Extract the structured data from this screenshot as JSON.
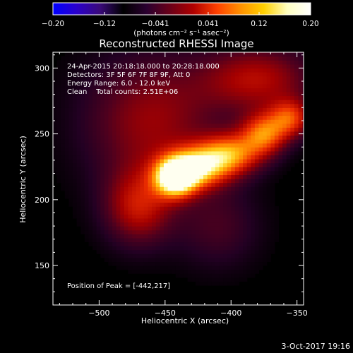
{
  "chart_data": {
    "type": "heatmap",
    "title": "Reconstructed RHESSI Image",
    "xlabel": "Heliocentric X (arcsec)",
    "ylabel": "Heliocentric Y (arcsec)",
    "xlim": [
      -535,
      -345
    ],
    "ylim": [
      120,
      312
    ],
    "x_ticks": [
      -500,
      -450,
      -400,
      -350
    ],
    "y_ticks": [
      150,
      200,
      250,
      300
    ],
    "x_tick_labels": [
      "−500",
      "−450",
      "−400",
      "−350"
    ],
    "y_tick_labels": [
      "150",
      "200",
      "250",
      "300"
    ],
    "colorbar": {
      "range": [
        -0.2,
        0.2
      ],
      "ticks": [
        -0.2,
        -0.12,
        -0.041,
        0.041,
        0.12,
        0.2
      ],
      "tick_labels": [
        "−0.20",
        "−0.12",
        "−0.041",
        "0.041",
        "0.12",
        "0.20"
      ],
      "units_label": "(photons cm⁻² s⁻¹ asec⁻²)",
      "colormap": [
        "#0000ff",
        "#2a00cc",
        "#3a0a7a",
        "#000000",
        "#2a0030",
        "#6a0018",
        "#b00000",
        "#ff4000",
        "#ff9000",
        "#ffd000",
        "#ffffc0",
        "#ffffff"
      ]
    },
    "annotations": [
      "24-Apr-2015 20:18:18.000 to 20:28:18.000",
      "Detectors: 3F 5F 6F 7F 8F 9F, Att 0",
      "Energy Range: 6.0 - 12.0 keV",
      "Clean    Total counts: 2.51E+06"
    ],
    "peak_label": "Position of Peak = [-442,217]",
    "peak_position": [
      -442,
      217
    ],
    "sources": [
      {
        "x": -442,
        "y": 217,
        "intensity": 1.0,
        "sx": 11,
        "sy": 10
      },
      {
        "x": -425,
        "y": 225,
        "intensity": 0.72,
        "sx": 16,
        "sy": 11
      },
      {
        "x": -400,
        "y": 235,
        "intensity": 0.62,
        "sx": 16,
        "sy": 11
      },
      {
        "x": -375,
        "y": 250,
        "intensity": 0.6,
        "sx": 12,
        "sy": 11
      },
      {
        "x": -355,
        "y": 262,
        "intensity": 0.5,
        "sx": 11,
        "sy": 10
      },
      {
        "x": -470,
        "y": 195,
        "intensity": 0.42,
        "sx": 18,
        "sy": 20
      },
      {
        "x": -460,
        "y": 260,
        "intensity": 0.35,
        "sx": 35,
        "sy": 35
      },
      {
        "x": -380,
        "y": 292,
        "intensity": 0.4,
        "sx": 30,
        "sy": 18
      },
      {
        "x": -410,
        "y": 180,
        "intensity": 0.18,
        "sx": 22,
        "sy": 22
      }
    ]
  },
  "footer": {
    "date": "3-Oct-2017 19:16"
  }
}
